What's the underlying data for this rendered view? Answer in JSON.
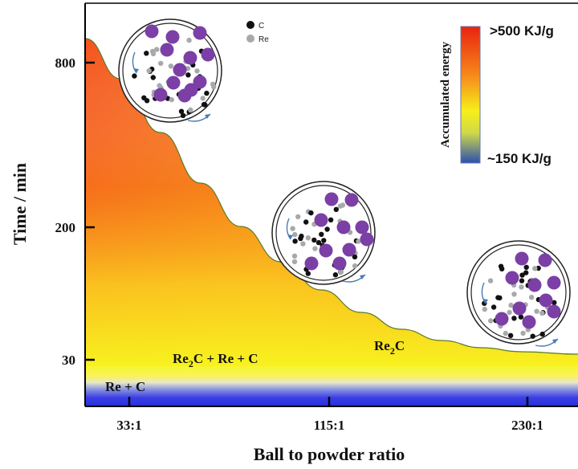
{
  "chart_data": {
    "type": "area",
    "title": "",
    "xlabel": "Ball to powder ratio",
    "ylabel": "Time / min",
    "x_ticks": [
      "33:1",
      "115:1",
      "230:1"
    ],
    "y_ticks": [
      "800",
      "200",
      "30"
    ],
    "y_scale": "log",
    "series": [
      {
        "x": [
          "33:1",
          "115:1",
          "230:1"
        ],
        "values": [
          800,
          150,
          30
        ]
      }
    ],
    "regions": [
      {
        "label": "Re + C",
        "label_html": [
          "Re + C"
        ]
      },
      {
        "label": "Re2C + Re + C",
        "label_html": [
          "Re",
          "2",
          "C + Re + C"
        ]
      },
      {
        "label": "Re2C",
        "label_html": [
          "Re",
          "2",
          "C"
        ]
      }
    ],
    "colorbar": {
      "label": "Accumulated energy",
      "max_label": ">500 KJ/g",
      "min_label": "~150 KJ/g",
      "colors": [
        "#e8230f",
        "#f9a51b",
        "#f6f01a",
        "#2a4fb0"
      ]
    },
    "key": [
      {
        "label": "C",
        "color": "#111111"
      },
      {
        "label": "Re",
        "color": "#a7a9ac"
      }
    ],
    "ball_color": "#7b3fa6",
    "grid": false
  }
}
